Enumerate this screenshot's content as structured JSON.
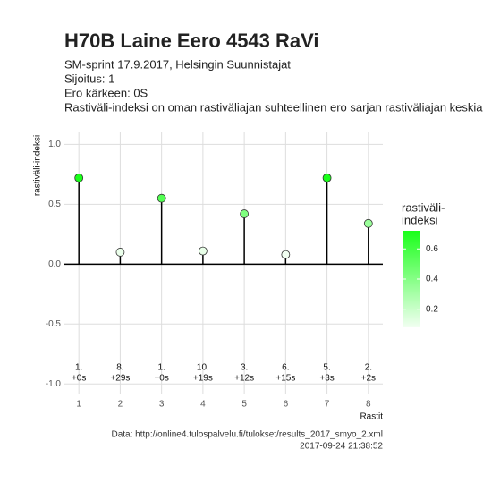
{
  "chart_data": {
    "type": "lollipop",
    "title": "H70B Laine Eero 4543 RaVi",
    "subtitle": [
      "SM-sprint 17.9.2017, Helsingin Suunnistajat",
      "Sijoitus: 1",
      "Ero kärkeen: 0S",
      "Rastiväli-indeksi on oman rastiväliajan suhteellinen ero sarjan rastiväliajan keskiarvoon"
    ],
    "y_label": "rastiväli-indeksi",
    "x_label": "Rastit",
    "x": [
      1,
      2,
      3,
      4,
      5,
      6,
      7,
      8
    ],
    "values": [
      0.72,
      0.1,
      0.55,
      0.11,
      0.42,
      0.08,
      0.72,
      0.34
    ],
    "rank_labels": [
      "1.",
      "8.",
      "1.",
      "10.",
      "3.",
      "6.",
      "5.",
      "2."
    ],
    "diff_labels": [
      "+0s",
      "+29s",
      "+0s",
      "+19s",
      "+12s",
      "+15s",
      "+3s",
      "+2s"
    ],
    "xlim": [
      0.65,
      8.35
    ],
    "xticks": [
      1,
      2,
      3,
      4,
      5,
      6,
      7,
      8
    ],
    "ylim": [
      -1.08,
      1.1
    ],
    "yticks": [
      {
        "value": -1,
        "label": "-1.0"
      },
      -0.5,
      {
        "value": 0,
        "label": "0.0"
      },
      0.5,
      {
        "value": 1,
        "label": "1.0"
      }
    ],
    "grid": true,
    "legend_title": [
      "rastiväli-",
      "indeksi"
    ],
    "color_low": "#f2fff2",
    "color_high": "#1aff1a",
    "colorlim": [
      0.08,
      0.72
    ],
    "colorticks": [
      0.2,
      0.4,
      0.6
    ],
    "caption": [
      "Data: http://online4.tulospalvelu.fi/tulokset/results_2017_smyo_2.xml",
      "2017-09-24 21:38:52"
    ]
  }
}
